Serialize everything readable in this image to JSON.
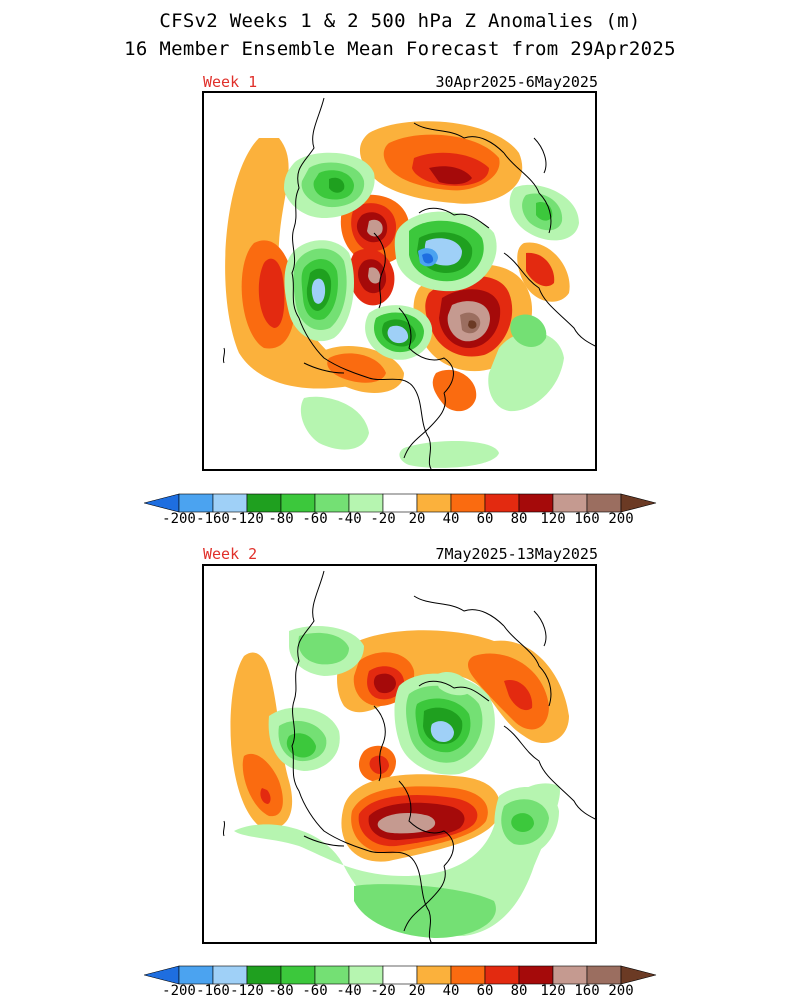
{
  "title_line1": "CFSv2 Weeks 1 & 2 500 hPa Z Anomalies (m)",
  "title_line2": "16 Member Ensemble Mean Forecast from 29Apr2025",
  "panels": [
    {
      "week_label": "Week 1",
      "date_range": "30Apr2025-6May2025"
    },
    {
      "week_label": "Week 2",
      "date_range": "7May2025-13May2025"
    }
  ],
  "colorbar": {
    "tick_labels": [
      "-200",
      "-160",
      "-120",
      "-80",
      "-60",
      "-40",
      "-20",
      "20",
      "40",
      "60",
      "80",
      "120",
      "160",
      "200"
    ],
    "colors": [
      "#1e6ee0",
      "#4ba3f0",
      "#9fd0f7",
      "#1fa01f",
      "#3cc83c",
      "#74e074",
      "#b6f5b0",
      "#ffffff",
      "#fbb13c",
      "#fa6b10",
      "#e32a10",
      "#a50a0a",
      "#c59a90",
      "#9b6e60",
      "#6b3a24"
    ]
  },
  "palette": {
    "pos20": "#fbb13c",
    "pos40": "#fa6b10",
    "pos60": "#e32a10",
    "pos80": "#a50a0a",
    "pos120": "#c59a90",
    "pos160": "#9b6e60",
    "neg20": "#b6f5b0",
    "neg40": "#74e074",
    "neg60": "#3cc83c",
    "neg80": "#1fa01f",
    "neg120": "#9fd0f7",
    "neg160": "#4ba3f0",
    "week_label_color": "#e0302a"
  }
}
